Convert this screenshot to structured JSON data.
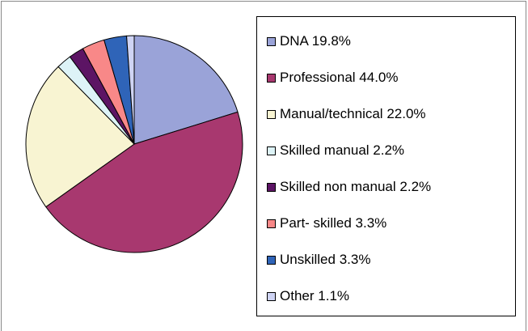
{
  "chart_data": {
    "type": "pie",
    "categories": [
      "DNA",
      "Professional",
      "Manual/technical",
      "Skilled manual",
      "Skilled non manual",
      "Part- skilled",
      "Unskilled",
      "Other"
    ],
    "values": [
      19.8,
      44.0,
      22.0,
      2.2,
      2.2,
      3.3,
      3.3,
      1.1
    ],
    "value_labels": [
      "19.8%",
      "44.0%",
      "22.0%",
      "2.2%",
      "2.2%",
      "3.3%",
      "3.3%",
      "1.1%"
    ],
    "colors": [
      "#9aa3d8",
      "#a8386f",
      "#f8f4d2",
      "#ddf3f7",
      "#5c1464",
      "#f88888",
      "#2f64b8",
      "#cfd4f4"
    ],
    "legend": "right"
  }
}
